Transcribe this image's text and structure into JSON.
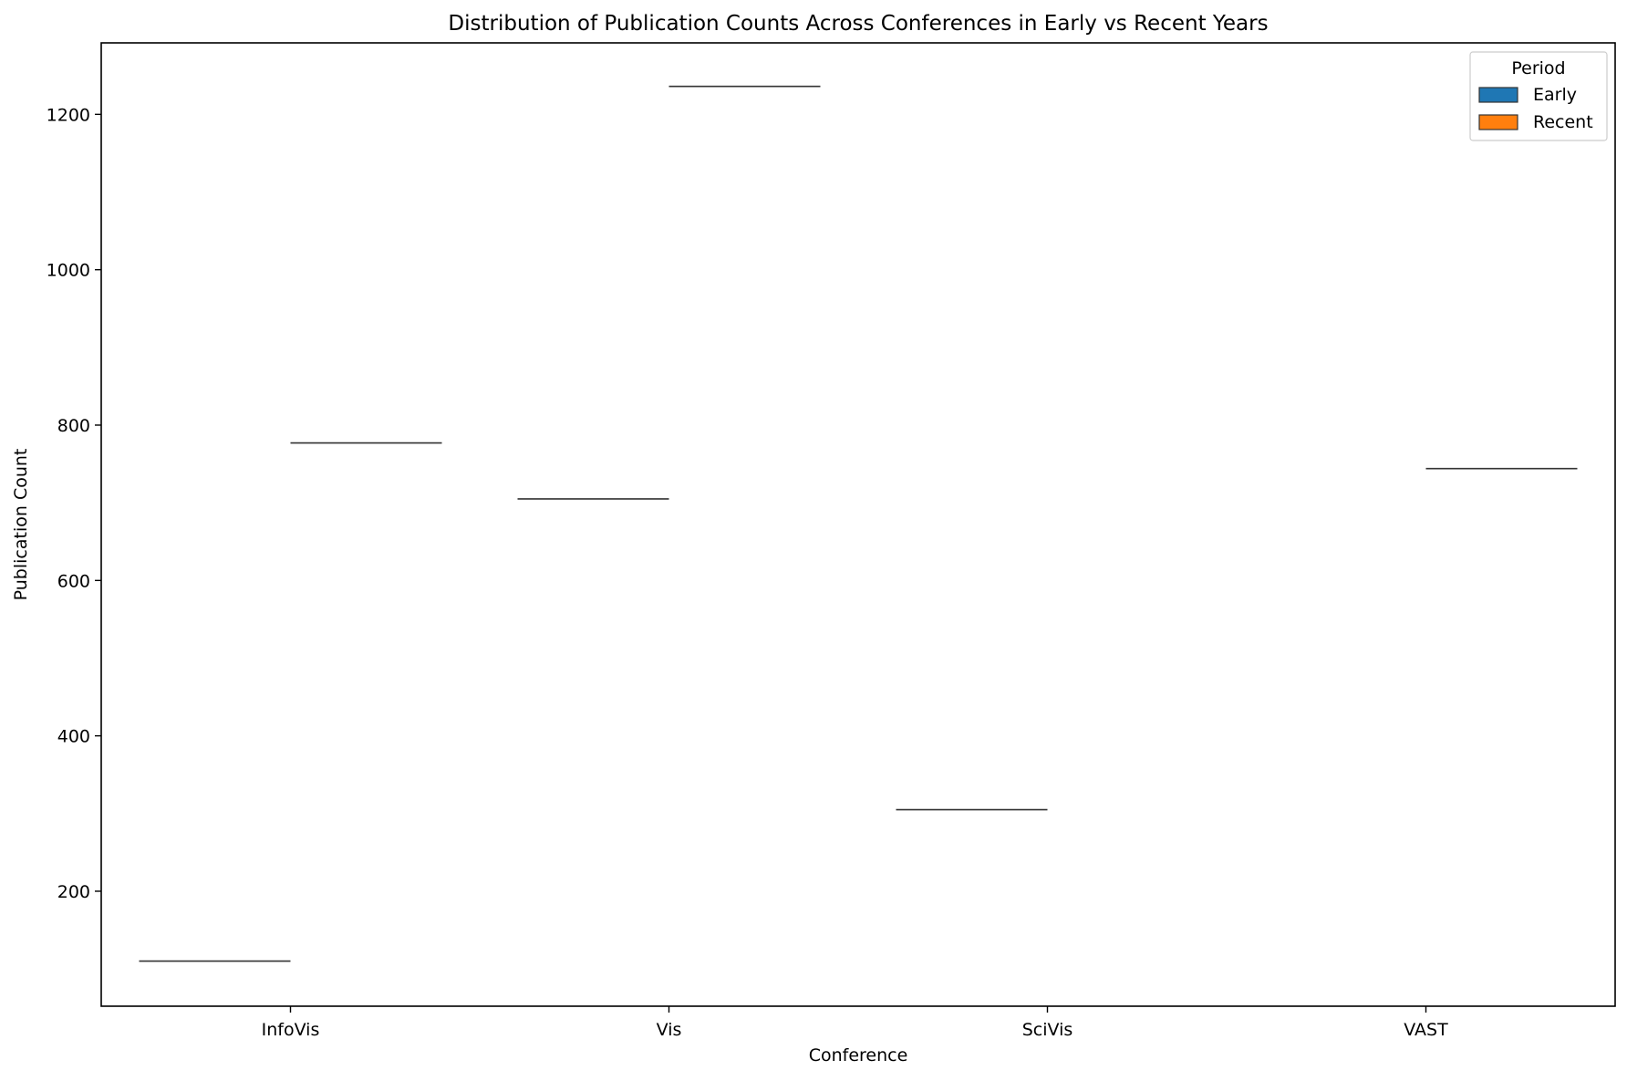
{
  "chart_data": {
    "type": "violin",
    "title": "Distribution of Publication Counts Across Conferences in Early vs Recent Years",
    "xlabel": "Conference",
    "ylabel": "Publication Count",
    "categories": [
      "InfoVis",
      "Vis",
      "SciVis",
      "VAST"
    ],
    "ylim": [
      52,
      1292
    ],
    "yticks": [
      200,
      400,
      600,
      800,
      1000,
      1200
    ],
    "grid": false,
    "legend": {
      "title": "Period",
      "placement": "top-right",
      "entries": [
        {
          "name": "Early",
          "color": "#1f77b4"
        },
        {
          "name": "Recent",
          "color": "#ff7f0e"
        }
      ]
    },
    "series": [
      {
        "name": "Early",
        "values": [
          110,
          705,
          305,
          null
        ]
      },
      {
        "name": "Recent",
        "values": [
          777,
          1236,
          null,
          744
        ]
      }
    ]
  }
}
